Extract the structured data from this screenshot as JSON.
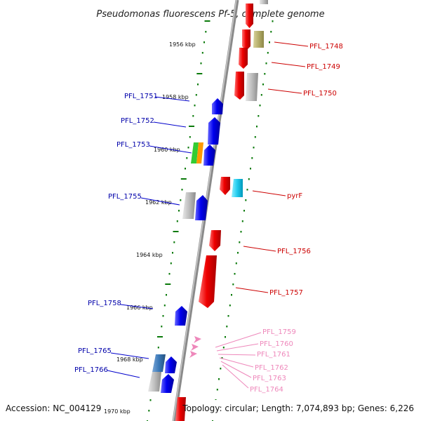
{
  "title": "Pseudomonas fluorescens Pf-5, complete genome",
  "footer": {
    "accession": "Accession: NC_004129",
    "topology": "Topology: circular; Length: 7,074,893 bp; Genes: 6,226"
  },
  "kbp_ticks": [
    "1956 kbp",
    "1958 kbp",
    "1960 kbp",
    "1962 kbp",
    "1964 kbp",
    "1966 kbp",
    "1968 kbp",
    "1970 kbp"
  ],
  "left_labels": [
    "PFL_1751",
    "PFL_1752",
    "PFL_1753",
    "PFL_1755",
    "PFL_1758",
    "PFL_1765",
    "PFL_1766"
  ],
  "right_labels": [
    "PFL_1748",
    "PFL_1749",
    "PFL_1750",
    "pyrF",
    "PFL_1756",
    "PFL_1757"
  ],
  "pink_labels": [
    "PFL_1759",
    "PFL_1760",
    "PFL_1761",
    "PFL_1762",
    "PFL_1763",
    "PFL_1764"
  ],
  "colors": {
    "reverse_gene": "#0000ee",
    "forward_gene": "#ee0000",
    "small_gene": "#ee88bb",
    "hypothetical": "#b0b0b0",
    "olive": "#b5ae6a",
    "cyan": "#22ccee",
    "tick": "#0a7a0a",
    "backbone": "#777777"
  }
}
